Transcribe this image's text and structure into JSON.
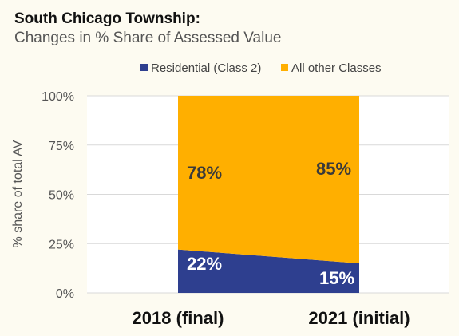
{
  "chart_data": {
    "type": "area",
    "stacked": true,
    "percent": true,
    "title": "South Chicago Township:",
    "subtitle": "Changes in % Share of Assessed Value",
    "xlabel": "",
    "ylabel": "% share of total AV",
    "categories": [
      "2018 (final)",
      "2021 (initial)"
    ],
    "ylim": [
      0,
      100
    ],
    "yticks": [
      0,
      25,
      50,
      75,
      100
    ],
    "ytick_labels": [
      "0%",
      "25%",
      "50%",
      "75%",
      "100%"
    ],
    "grid": true,
    "legend_position": "top",
    "series": [
      {
        "name": "Residential (Class 2)",
        "color": "#2E3F8F",
        "values": [
          22,
          15
        ],
        "labels": [
          "22%",
          "15%"
        ]
      },
      {
        "name": "All other Classes",
        "color": "#FFAF00",
        "values": [
          78,
          85
        ],
        "labels": [
          "78%",
          "85%"
        ]
      }
    ]
  }
}
